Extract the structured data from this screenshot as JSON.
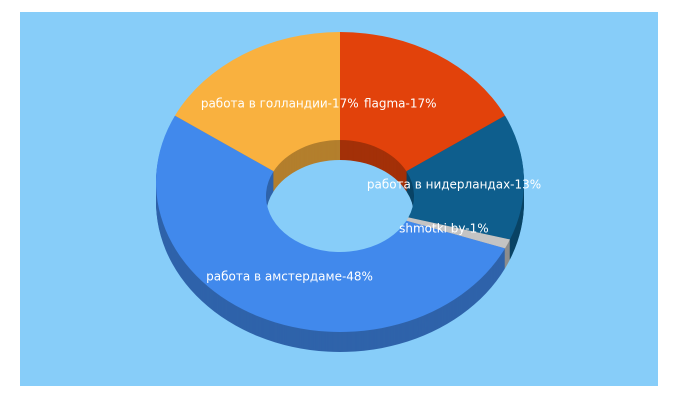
{
  "chart_data": {
    "type": "donut3d",
    "categories": [
      "flagma-17%",
      "работа в нидерландах-13%",
      "shmotki by-1%",
      "работа в амстердаме-48%",
      "работа в голландии-17%"
    ],
    "values": [
      17,
      13,
      1,
      48,
      17
    ],
    "colors": [
      "#e2420b",
      "#0e5e8d",
      "#c4c4c4",
      "#4189ec",
      "#f9b13f"
    ],
    "background": "#87cdf9"
  }
}
